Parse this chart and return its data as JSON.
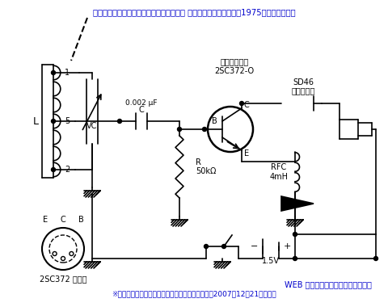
{
  "title": "１石・バラック高１イヤホン・ラジオ（泉 弘志氏・「子供の科学」1975年２月号掲載）",
  "subtitle_right": "WEB サイト「子供の科学のラジオ」",
  "footer": "※「子供の科学」編集部の許可を得てトレス掲載（2007年12月21日許諾）",
  "title_color": "#0000cc",
  "footer_color": "#0000cc",
  "bg_color": "#ffffff",
  "line_color": "#000000",
  "text_color": "#000000",
  "label_transistor": "トランジスタ\n2SC372-O",
  "label_diode_top": "ダイオード",
  "label_diode_bot": "SD46",
  "label_C_top": "C",
  "label_C_bot": "0.002 μF",
  "label_R": "R\n50kΩ",
  "label_RFC": "RFC\n4mH",
  "label_VC": "VC",
  "label_L": "L",
  "label_B": "B",
  "label_C2": "C",
  "label_E": "E",
  "label_1": "1",
  "label_5": "5",
  "label_2": "2",
  "label_1V5": "1.5V",
  "label_bottom": "2SC372 底面図",
  "label_ECB_E": "E",
  "label_ECB_C": "C",
  "label_ECB_B": "B"
}
